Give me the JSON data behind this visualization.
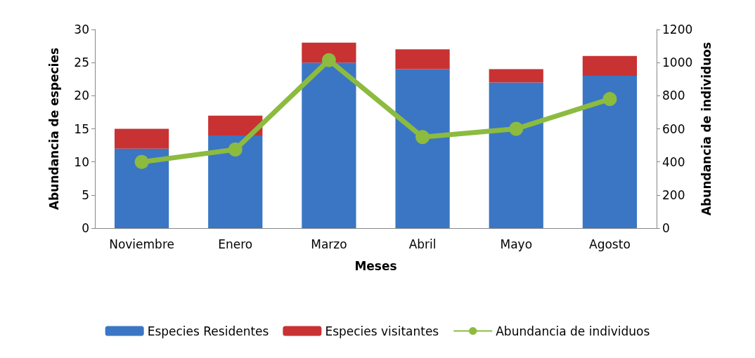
{
  "chart_data": {
    "type": "bar",
    "stacked": true,
    "xlabel": "Meses",
    "ylabel": "Abundancia de especies",
    "y2label": "Abundancia de individuos",
    "categories": [
      "Noviembre",
      "Enero",
      "Marzo",
      "Abril",
      "Mayo",
      "Agosto"
    ],
    "series": [
      {
        "name": "Especies Residentes",
        "color": "#3a76c4",
        "values": [
          12,
          14,
          25,
          24,
          22,
          23
        ]
      },
      {
        "name": "Especies visitantes",
        "color": "#c83232",
        "values": [
          3,
          3,
          3,
          3,
          2,
          3
        ]
      },
      {
        "name": "Abundancia de individuos",
        "type": "line",
        "axis": "y2",
        "color": "#8cbb3f",
        "marker": "circle",
        "values": [
          400,
          475,
          1015,
          550,
          600,
          780
        ]
      }
    ],
    "ylim": [
      0,
      30
    ],
    "yticks": [
      0,
      5,
      10,
      15,
      20,
      25,
      30
    ],
    "y2lim": [
      0,
      1200
    ],
    "y2ticks": [
      0,
      200,
      400,
      600,
      800,
      1000,
      1200
    ],
    "grid": false,
    "legend": "bottom"
  }
}
